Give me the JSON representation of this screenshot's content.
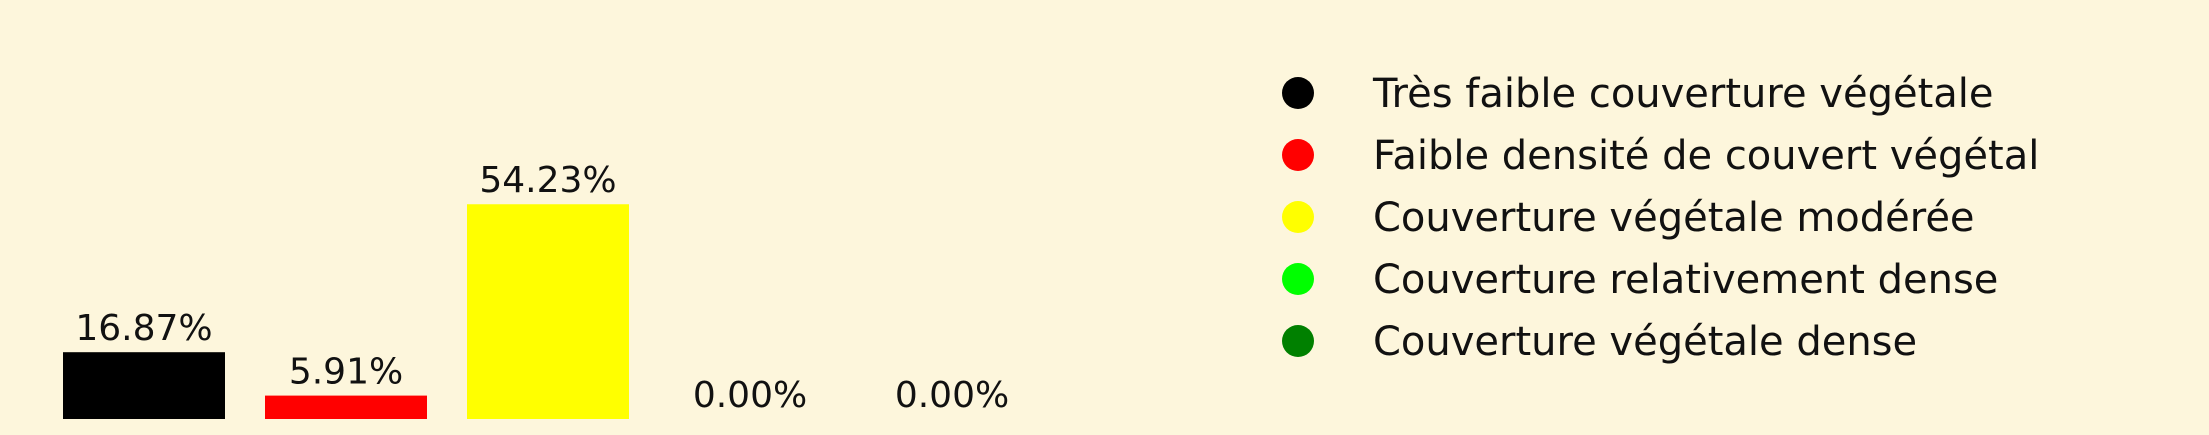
{
  "chart_data": {
    "type": "bar",
    "categories": [
      "Très faible couverture végétale",
      "Faible densité de couvert végétal",
      "Couverture végétale modérée",
      "Couverture relativement dense",
      "Couverture végétale dense"
    ],
    "values": [
      16.87,
      5.91,
      54.23,
      0.0,
      0.0
    ],
    "value_labels": [
      "16.87%",
      "5.91%",
      "54.23%",
      "0.00%",
      "0.00%"
    ],
    "colors": [
      "#000000",
      "#ff0000",
      "#ffff00",
      "#00ff00",
      "#008000"
    ],
    "ylim": [
      0,
      60
    ],
    "grid": false,
    "legend_position": "right"
  },
  "legend": {
    "items": [
      {
        "label": "Très faible couverture végétale",
        "color": "#000000"
      },
      {
        "label": "Faible densité de couvert végétal",
        "color": "#ff0000"
      },
      {
        "label": "Couverture végétale modérée",
        "color": "#ffff00"
      },
      {
        "label": "Couverture relativement dense",
        "color": "#00ff00"
      },
      {
        "label": "Couverture végétale dense",
        "color": "#008000"
      }
    ]
  },
  "colors": {
    "background": "#fdf6dc",
    "text": "#111111"
  }
}
